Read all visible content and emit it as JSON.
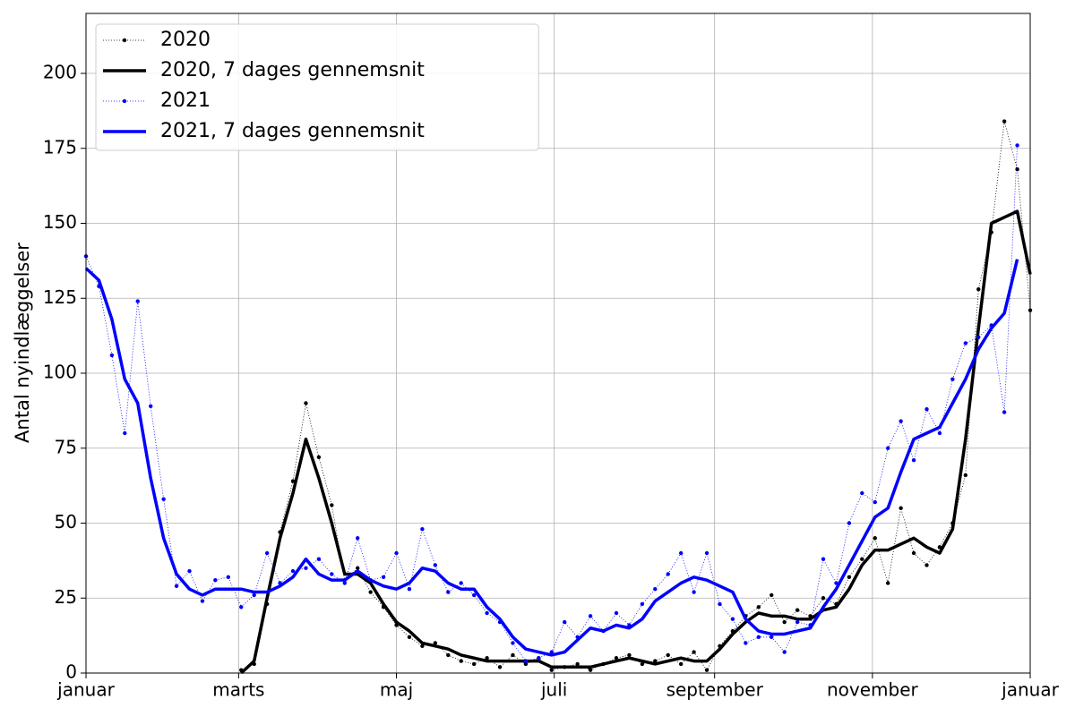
{
  "chart_data": {
    "type": "line",
    "ylabel": "Antal nyindlæggelser",
    "xlim": [
      0,
      365
    ],
    "ylim": [
      0,
      220
    ],
    "xticks": [
      {
        "value": 0,
        "label": "januar"
      },
      {
        "value": 59,
        "label": "marts"
      },
      {
        "value": 120,
        "label": "maj"
      },
      {
        "value": 181,
        "label": "juli"
      },
      {
        "value": 243,
        "label": "september"
      },
      {
        "value": 304,
        "label": "november"
      },
      {
        "value": 365,
        "label": "januar"
      }
    ],
    "yticks": [
      0,
      25,
      50,
      75,
      100,
      125,
      150,
      175,
      200
    ],
    "grid": true,
    "legend": "upper-left",
    "x": [
      0,
      5,
      10,
      15,
      20,
      25,
      30,
      35,
      40,
      45,
      50,
      55,
      60,
      65,
      70,
      75,
      80,
      85,
      90,
      95,
      100,
      105,
      110,
      115,
      120,
      125,
      130,
      135,
      140,
      145,
      150,
      155,
      160,
      165,
      170,
      175,
      180,
      185,
      190,
      195,
      200,
      205,
      210,
      215,
      220,
      225,
      230,
      235,
      240,
      245,
      250,
      255,
      260,
      265,
      270,
      275,
      280,
      285,
      290,
      295,
      300,
      305,
      310,
      315,
      320,
      325,
      330,
      335,
      340,
      345,
      350,
      355,
      360,
      365
    ],
    "series": [
      {
        "name": "2020",
        "color": "#000000",
        "line_style": "dotted",
        "line_width": 0.8,
        "marker": true,
        "values": [
          null,
          null,
          null,
          null,
          null,
          null,
          null,
          null,
          null,
          null,
          null,
          null,
          1,
          3,
          23,
          47,
          64,
          90,
          72,
          56,
          31,
          35,
          27,
          22,
          16,
          12,
          9,
          10,
          6,
          4,
          3,
          5,
          2,
          6,
          3,
          5,
          1,
          2,
          3,
          1,
          3,
          5,
          6,
          3,
          4,
          6,
          3,
          7,
          1,
          9,
          14,
          19,
          22,
          26,
          17,
          21,
          19,
          25,
          23,
          32,
          38,
          45,
          30,
          55,
          40,
          36,
          42,
          50,
          66,
          128,
          147,
          184,
          168,
          121
        ]
      },
      {
        "name": "2020, 7 dages gennemsnit",
        "color": "#000000",
        "line_style": "solid",
        "line_width": 3.5,
        "marker": false,
        "values": [
          null,
          null,
          null,
          null,
          null,
          null,
          null,
          null,
          null,
          null,
          null,
          null,
          0,
          4,
          25,
          45,
          60,
          78,
          65,
          50,
          33,
          33,
          30,
          23,
          17,
          14,
          10,
          9,
          8,
          6,
          5,
          4,
          4,
          4,
          4,
          4,
          2,
          2,
          2,
          2,
          3,
          4,
          5,
          4,
          3,
          4,
          5,
          4,
          4,
          8,
          13,
          17,
          20,
          19,
          19,
          18,
          18,
          21,
          22,
          28,
          36,
          41,
          41,
          43,
          45,
          42,
          40,
          48,
          78,
          115,
          150,
          152,
          154,
          133
        ]
      },
      {
        "name": "2021",
        "color": "#0000ff",
        "line_style": "dotted",
        "line_width": 0.8,
        "marker": true,
        "values": [
          139,
          129,
          106,
          80,
          124,
          89,
          58,
          29,
          34,
          24,
          31,
          32,
          22,
          26,
          40,
          30,
          34,
          35,
          38,
          33,
          30,
          45,
          31,
          32,
          40,
          28,
          48,
          36,
          27,
          30,
          26,
          20,
          17,
          10,
          4,
          5,
          7,
          17,
          12,
          19,
          14,
          20,
          16,
          23,
          28,
          33,
          40,
          27,
          40,
          23,
          18,
          10,
          12,
          12,
          7,
          17,
          16,
          38,
          30,
          50,
          60,
          57,
          75,
          84,
          71,
          88,
          80,
          98,
          110,
          112,
          116,
          87,
          176,
          null
        ]
      },
      {
        "name": "2021, 7 dages gennemsnit",
        "color": "#0000ff",
        "line_style": "solid",
        "line_width": 3.5,
        "marker": false,
        "values": [
          135,
          131,
          118,
          98,
          90,
          65,
          45,
          33,
          28,
          26,
          28,
          28,
          28,
          27,
          27,
          29,
          32,
          38,
          33,
          31,
          31,
          34,
          31,
          29,
          28,
          30,
          35,
          34,
          30,
          28,
          28,
          22,
          18,
          12,
          8,
          7,
          6,
          7,
          11,
          15,
          14,
          16,
          15,
          18,
          24,
          27,
          30,
          32,
          31,
          29,
          27,
          18,
          14,
          13,
          13,
          14,
          15,
          22,
          28,
          36,
          44,
          52,
          55,
          67,
          78,
          80,
          82,
          90,
          98,
          108,
          115,
          120,
          138,
          null
        ]
      }
    ]
  }
}
